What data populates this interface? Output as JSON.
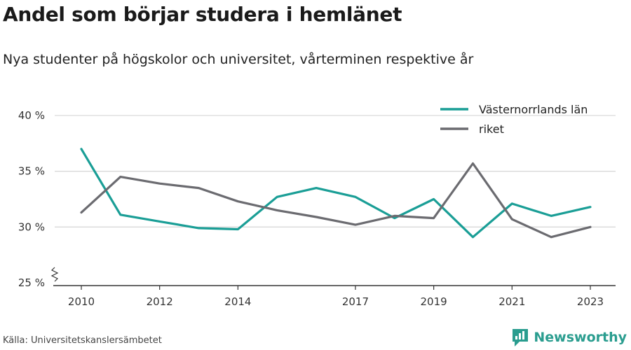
{
  "title": "Andel som börjar studera i hemlänet",
  "subtitle": "Nya studenter på högskolor och universitet, vårterminen respektive år",
  "source": "Källa: Universitetskanslersämbetet",
  "brand": "Newsworthy",
  "colors": {
    "teal": "#1a9e96",
    "gray": "#6b6b70",
    "grid": "#d9d9d9",
    "brand": "#2a9d8f"
  },
  "chart_data": {
    "type": "line",
    "x": [
      2010,
      2011,
      2012,
      2013,
      2014,
      2015,
      2016,
      2017,
      2018,
      2019,
      2020,
      2021,
      2022,
      2023
    ],
    "x_tick_labels": [
      "2010",
      "2012",
      "2014",
      "2017",
      "2019",
      "2021",
      "2023"
    ],
    "y_ticks": [
      "25 %",
      "30 %",
      "35 %",
      "40 %"
    ],
    "ylim": [
      25,
      40
    ],
    "grid": true,
    "legend_position": "top-right",
    "series": [
      {
        "name": "Västernorrlands län",
        "color": "#1a9e96",
        "values": [
          37.0,
          31.1,
          30.5,
          29.9,
          29.8,
          32.7,
          33.5,
          32.7,
          30.8,
          32.5,
          29.1,
          32.1,
          31.0,
          31.8
        ]
      },
      {
        "name": "riket",
        "color": "#6b6b70",
        "values": [
          31.3,
          34.5,
          33.9,
          33.5,
          32.3,
          31.5,
          30.9,
          30.2,
          31.0,
          30.8,
          35.7,
          30.7,
          29.1,
          30.0
        ]
      }
    ]
  }
}
